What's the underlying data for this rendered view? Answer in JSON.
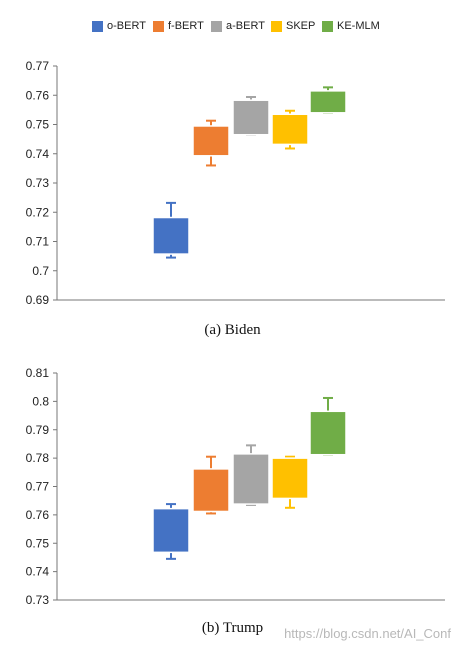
{
  "legend": {
    "items": [
      {
        "label": "o-BERT",
        "color": "#4472C4"
      },
      {
        "label": "f-BERT",
        "color": "#ED7D31"
      },
      {
        "label": "a-BERT",
        "color": "#A5A5A5"
      },
      {
        "label": "SKEP",
        "color": "#FFC000"
      },
      {
        "label": "KE-MLM",
        "color": "#70AD47"
      }
    ]
  },
  "chart_data": [
    {
      "type": "boxplot",
      "caption": "(a) Biden",
      "ylim": [
        0.69,
        0.77
      ],
      "yticks": [
        "0.69",
        "0.7",
        "0.71",
        "0.72",
        "0.73",
        "0.74",
        "0.75",
        "0.76",
        "0.77"
      ],
      "grid": false,
      "series": [
        {
          "name": "o-BERT",
          "color": "#4472C4",
          "min": 0.7045,
          "q1": 0.7057,
          "q3": 0.7182,
          "max": 0.7232
        },
        {
          "name": "f-BERT",
          "color": "#ED7D31",
          "min": 0.736,
          "q1": 0.7393,
          "q3": 0.7495,
          "max": 0.7513
        },
        {
          "name": "a-BERT",
          "color": "#A5A5A5",
          "min": 0.7465,
          "q1": 0.7465,
          "q3": 0.7583,
          "max": 0.7594
        },
        {
          "name": "SKEP",
          "color": "#FFC000",
          "min": 0.7418,
          "q1": 0.7432,
          "q3": 0.7535,
          "max": 0.7547
        },
        {
          "name": "KE-MLM",
          "color": "#70AD47",
          "min": 0.754,
          "q1": 0.754,
          "q3": 0.7615,
          "max": 0.7627
        }
      ]
    },
    {
      "type": "boxplot",
      "caption": "(b) Trump",
      "ylim": [
        0.73,
        0.81
      ],
      "yticks": [
        "0.73",
        "0.74",
        "0.75",
        "0.76",
        "0.77",
        "0.78",
        "0.79",
        "0.8",
        "0.81"
      ],
      "grid": false,
      "series": [
        {
          "name": "o-BERT",
          "color": "#4472C4",
          "min": 0.7445,
          "q1": 0.7468,
          "q3": 0.7622,
          "max": 0.7638
        },
        {
          "name": "f-BERT",
          "color": "#ED7D31",
          "min": 0.7605,
          "q1": 0.7612,
          "q3": 0.7762,
          "max": 0.7805
        },
        {
          "name": "a-BERT",
          "color": "#A5A5A5",
          "min": 0.7635,
          "q1": 0.7638,
          "q3": 0.7815,
          "max": 0.7845
        },
        {
          "name": "SKEP",
          "color": "#FFC000",
          "min": 0.7625,
          "q1": 0.7658,
          "q3": 0.78,
          "max": 0.7805
        },
        {
          "name": "KE-MLM",
          "color": "#70AD47",
          "min": 0.7812,
          "q1": 0.7812,
          "q3": 0.7965,
          "max": 0.8012
        }
      ]
    }
  ],
  "watermark": "https://blog.csdn.net/AI_Conf"
}
